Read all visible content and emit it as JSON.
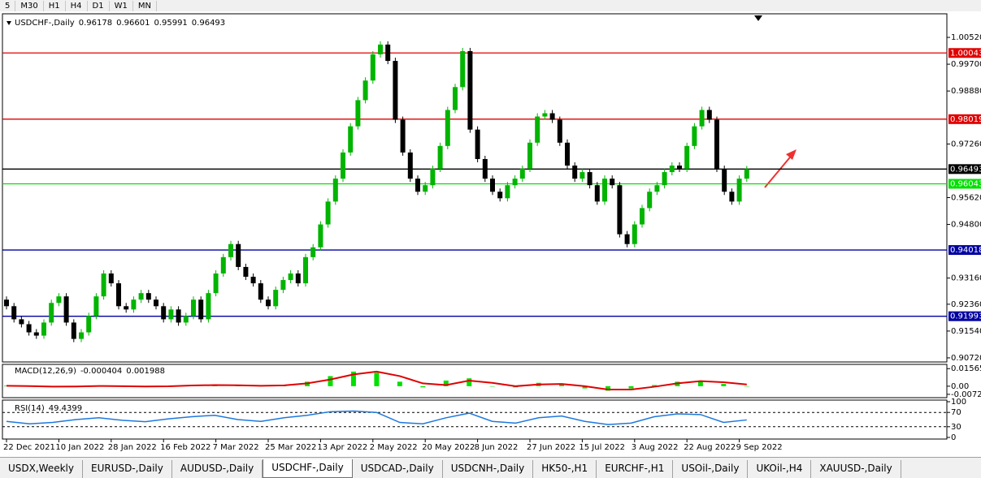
{
  "toolbar": [
    "5",
    "M30",
    "H1",
    "H4",
    "D1",
    "W1",
    "MN"
  ],
  "chart_data": [
    {
      "type": "candlestick",
      "title": "USDCHF-,Daily",
      "header_values": [
        0.96178,
        0.96601,
        0.95991,
        0.96493
      ],
      "categories": [
        "22 Dec 2021",
        null,
        null,
        null,
        null,
        null,
        null,
        "10 Jan 2022",
        null,
        null,
        null,
        null,
        null,
        null,
        "28 Jan 2022",
        null,
        null,
        null,
        null,
        null,
        null,
        "16 Feb 2022",
        null,
        null,
        null,
        null,
        null,
        null,
        "7 Mar 2022",
        null,
        null,
        null,
        null,
        null,
        null,
        "25 Mar 2022",
        null,
        null,
        null,
        null,
        null,
        null,
        "13 Apr 2022",
        null,
        null,
        null,
        null,
        null,
        null,
        "2 May 2022",
        null,
        null,
        null,
        null,
        null,
        null,
        "20 May 2022",
        null,
        null,
        null,
        null,
        null,
        null,
        "8 Jun 2022",
        null,
        null,
        null,
        null,
        null,
        null,
        "27 Jun 2022",
        null,
        null,
        null,
        null,
        null,
        null,
        "15 Jul 2022",
        null,
        null,
        null,
        null,
        null,
        null,
        "3 Aug 2022",
        null,
        null,
        null,
        null,
        null,
        null,
        "22 Aug 2022",
        null,
        null,
        null,
        null,
        null,
        null,
        "9 Sep 2022",
        null
      ],
      "open": [
        0.925,
        0.923,
        0.919,
        0.9175,
        0.915,
        0.914,
        0.918,
        0.924,
        0.926,
        0.918,
        0.913,
        0.915,
        0.92,
        0.926,
        0.933,
        0.93,
        0.923,
        0.922,
        0.925,
        0.927,
        0.925,
        0.923,
        0.919,
        0.922,
        0.918,
        0.92,
        0.925,
        0.919,
        0.927,
        0.933,
        0.938,
        0.942,
        0.935,
        0.932,
        0.93,
        0.925,
        0.923,
        0.928,
        0.931,
        0.933,
        0.93,
        0.938,
        0.941,
        0.948,
        0.955,
        0.962,
        0.97,
        0.978,
        0.986,
        0.992,
        1.0,
        1.003,
        0.998,
        0.98,
        0.97,
        0.962,
        0.958,
        0.96,
        0.965,
        0.972,
        0.983,
        0.99,
        1.001,
        0.977,
        0.968,
        0.962,
        0.958,
        0.956,
        0.96,
        0.962,
        0.965,
        0.973,
        0.981,
        0.982,
        0.98,
        0.973,
        0.966,
        0.962,
        0.964,
        0.96,
        0.955,
        0.962,
        0.96,
        0.945,
        0.942,
        0.948,
        0.953,
        0.958,
        0.96,
        0.964,
        0.966,
        0.965,
        0.972,
        0.978,
        0.983,
        0.98,
        0.965,
        0.958,
        0.955,
        0.962
      ],
      "close": [
        0.923,
        0.919,
        0.9175,
        0.915,
        0.914,
        0.918,
        0.924,
        0.926,
        0.918,
        0.913,
        0.915,
        0.92,
        0.926,
        0.933,
        0.93,
        0.923,
        0.922,
        0.925,
        0.927,
        0.925,
        0.923,
        0.919,
        0.922,
        0.918,
        0.92,
        0.925,
        0.919,
        0.927,
        0.933,
        0.938,
        0.942,
        0.935,
        0.932,
        0.93,
        0.925,
        0.923,
        0.928,
        0.931,
        0.933,
        0.93,
        0.938,
        0.941,
        0.948,
        0.955,
        0.962,
        0.97,
        0.978,
        0.986,
        0.992,
        1.0,
        1.003,
        0.998,
        0.98,
        0.97,
        0.962,
        0.958,
        0.96,
        0.965,
        0.972,
        0.983,
        0.99,
        1.001,
        0.977,
        0.968,
        0.962,
        0.958,
        0.956,
        0.96,
        0.962,
        0.965,
        0.973,
        0.981,
        0.982,
        0.98,
        0.973,
        0.966,
        0.962,
        0.964,
        0.96,
        0.955,
        0.962,
        0.96,
        0.945,
        0.942,
        0.948,
        0.953,
        0.958,
        0.96,
        0.964,
        0.966,
        0.965,
        0.972,
        0.978,
        0.983,
        0.98,
        0.965,
        0.958,
        0.955,
        0.962,
        0.9649
      ],
      "up_color": "#00b400",
      "down_color": "#000000",
      "ylim": [
        0.90595,
        1.01241
      ],
      "yticks": [
        {
          "value": 1.0052,
          "label": "1.00520"
        },
        {
          "value": 0.997,
          "label": "0.99700"
        },
        {
          "value": 0.9888,
          "label": "0.98880"
        },
        {
          "value": 0.9726,
          "label": "0.97260"
        },
        {
          "value": 0.9562,
          "label": "0.95620"
        },
        {
          "value": 0.948,
          "label": "0.94800"
        },
        {
          "value": 0.9316,
          "label": "0.93160"
        },
        {
          "value": 0.9236,
          "label": "0.92360"
        },
        {
          "value": 0.9154,
          "label": "0.91540"
        },
        {
          "value": 0.9072,
          "label": "0.90720"
        }
      ],
      "levels": [
        {
          "value": 1.00043,
          "color": "#e00000"
        },
        {
          "value": 0.98019,
          "color": "#e00000"
        },
        {
          "value": 0.96493,
          "color": "#000000"
        },
        {
          "value": 0.96043,
          "color": "#00e000"
        },
        {
          "value": 0.94018,
          "color": "#0000a0"
        },
        {
          "value": 0.91993,
          "color": "#0000a0"
        }
      ]
    },
    {
      "type": "macd",
      "title": "MACD(12,26,9)",
      "header_values": [
        -0.000404,
        0.001988
      ],
      "macd": [
        0.0005,
        -0.0003,
        -0.0008,
        0.0,
        0.0006,
        -0.0002,
        -0.0004,
        0.0001,
        0.001,
        0.0012,
        0.0005,
        0.0002,
        0.001,
        0.004,
        0.009,
        0.013,
        0.012,
        0.004,
        -0.001,
        0.005,
        0.007,
        0.0,
        -0.001,
        0.003,
        0.002,
        -0.002,
        -0.004,
        -0.002,
        0.001,
        0.004,
        0.005,
        0.002,
        0.0
      ],
      "signal": [
        0.0004,
        0.0001,
        -0.0004,
        -0.0003,
        0.0002,
        0.0,
        -0.0003,
        -0.0001,
        0.0006,
        0.001,
        0.0008,
        0.0004,
        0.0007,
        0.0025,
        0.006,
        0.0105,
        0.013,
        0.009,
        0.0025,
        0.001,
        0.005,
        0.003,
        0.0,
        0.0015,
        0.002,
        0.0,
        -0.003,
        -0.003,
        -0.0005,
        0.0025,
        0.0045,
        0.0035,
        0.0015
      ],
      "hist_color": "#00e000",
      "signal_color": "#e00000",
      "ylim": [
        -0.0095,
        0.018
      ],
      "yticks": [
        0.015654,
        {
          "value": 0,
          "label": "0.00"
        },
        -0.00725
      ]
    },
    {
      "type": "rsi",
      "title": "RSI(14)",
      "header_values": [
        49.4399
      ],
      "values": [
        45,
        38,
        42,
        50,
        55,
        48,
        44,
        52,
        58,
        62,
        50,
        45,
        55,
        62,
        72,
        74,
        70,
        42,
        38,
        55,
        68,
        45,
        40,
        55,
        60,
        45,
        36,
        40,
        58,
        66,
        64,
        42,
        49
      ],
      "color": "#1e78dc",
      "ylim": [
        0,
        100
      ],
      "yticks": [
        100,
        70,
        30,
        0
      ],
      "levels": [
        70,
        30
      ]
    }
  ],
  "tabs": [
    "USDX,Weekly",
    "EURUSD-,Daily",
    "AUDUSD-,Daily",
    "USDCHF-,Daily",
    "USDCAD-,Daily",
    "USDCNH-,Daily",
    "HK50-,H1",
    "EURCHF-,H1",
    "USOil-,Daily",
    "UKOil-,H4",
    "XAUUSD-,Daily"
  ],
  "active_tab": 3
}
